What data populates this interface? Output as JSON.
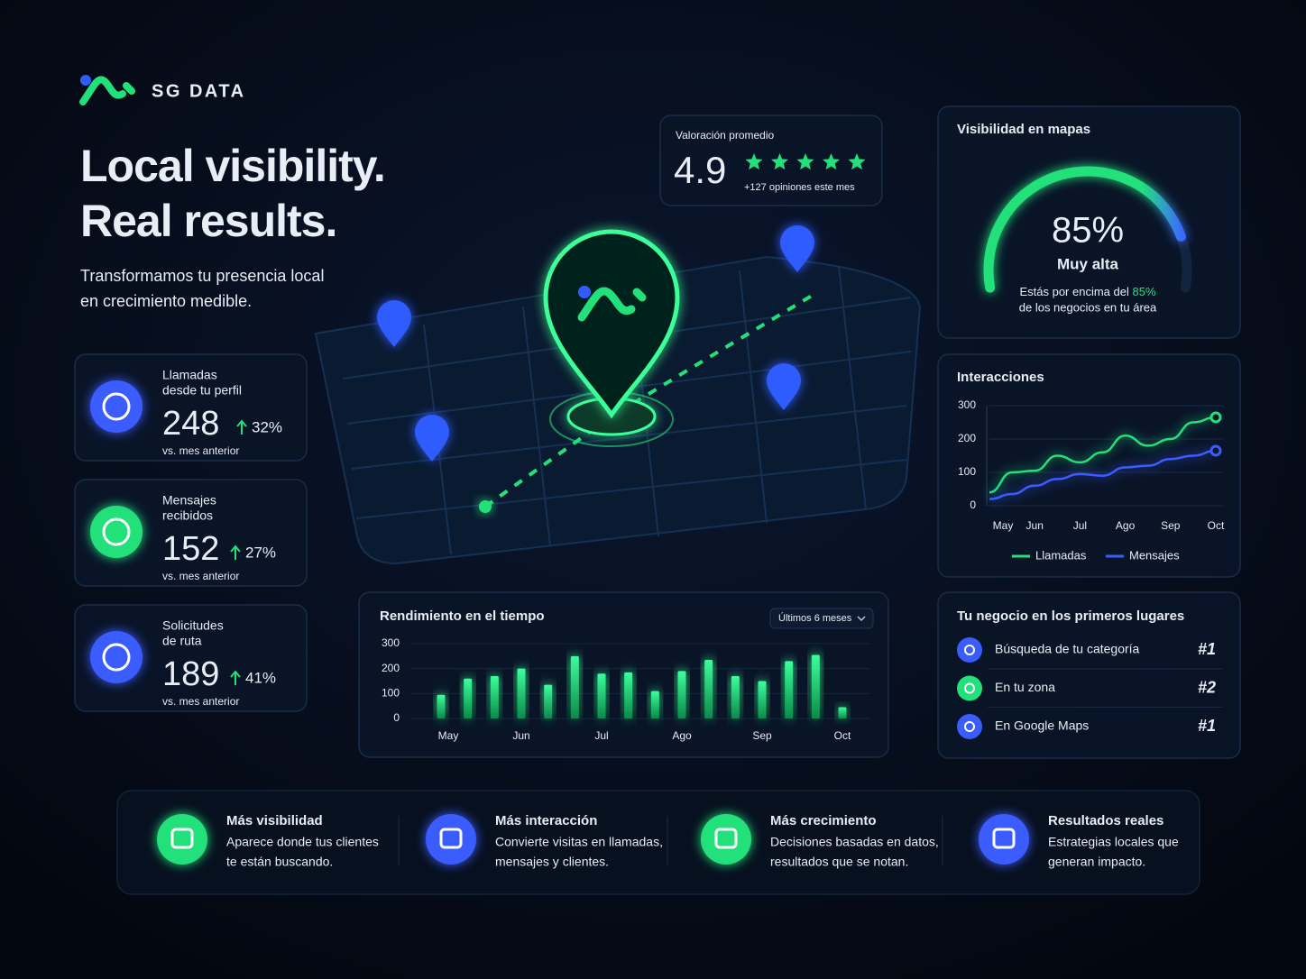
{
  "brand": "SG DATA",
  "hero": {
    "title_line1": "Local visibility.",
    "title_line2": "Real results.",
    "subtitle_line1": "Transformamos tu presencia local",
    "subtitle_line2": "en crecimiento medible."
  },
  "stats": [
    {
      "label_line1": "Llamadas",
      "label_line2": "desde tu perfil",
      "value": "248",
      "change": "32%",
      "note": "vs. mes anterior"
    },
    {
      "label_line1": "Mensajes",
      "label_line2": "recibidos",
      "value": "152",
      "change": "27%",
      "note": "vs. mes anterior"
    },
    {
      "label_line1": "Solicitudes",
      "label_line2": "de ruta",
      "value": "189",
      "change": "41%",
      "note": "vs. mes anterior"
    }
  ],
  "rating": {
    "label": "Valoración promedio",
    "value": "4.9",
    "note": "+127 opiniones este mes"
  },
  "gauge": {
    "title": "Visibilidad en mapas",
    "value": 85,
    "value_label": "85%",
    "status": "Muy alta",
    "note_pre": "Estás por encima del ",
    "note_highlight": "85%",
    "note_line2": "de los negocios en tu área"
  },
  "chart_data": [
    {
      "type": "line",
      "title": "Interacciones",
      "categories": [
        "May",
        null,
        "Jun",
        null,
        "Jul",
        null,
        "Ago",
        null,
        "Sep",
        null,
        "Oct"
      ],
      "series": [
        {
          "name": "Llamadas",
          "color": "#22e07a",
          "values": [
            40,
            100,
            105,
            150,
            130,
            160,
            210,
            180,
            200,
            250,
            265
          ]
        },
        {
          "name": "Mensajes",
          "color": "#3b5cff",
          "values": [
            20,
            35,
            60,
            80,
            95,
            90,
            115,
            120,
            140,
            150,
            165
          ]
        }
      ],
      "ylim": [
        0,
        300
      ],
      "yticks": [
        0,
        100,
        200,
        300
      ],
      "grid": true,
      "legend": "bottom"
    },
    {
      "type": "bar",
      "title": "Rendimiento en el tiempo",
      "filter": "Últimos 6 meses",
      "categories": [
        "May",
        null,
        null,
        "Jun",
        null,
        null,
        "Jul",
        null,
        null,
        "Ago",
        null,
        null,
        "Sep",
        null,
        null,
        "Oct"
      ],
      "values": [
        95,
        160,
        170,
        200,
        135,
        250,
        180,
        185,
        110,
        190,
        235,
        170,
        150,
        230,
        255,
        45
      ],
      "color": "#22e07a",
      "ylim": [
        0,
        300
      ],
      "yticks": [
        0,
        100,
        200,
        300
      ],
      "grid": true
    }
  ],
  "ranking": {
    "title": "Tu negocio en los primeros lugares",
    "items": [
      {
        "label": "Búsqueda de tu categoría",
        "rank": "#1"
      },
      {
        "label": "En tu zona",
        "rank": "#2"
      },
      {
        "label": "En Google Maps",
        "rank": "#1"
      }
    ]
  },
  "features": [
    {
      "title": "Más visibilidad",
      "line1": "Aparece donde tus clientes",
      "line2": "te están buscando."
    },
    {
      "title": "Más interacción",
      "line1": "Convierte visitas en llamadas,",
      "line2": "mensajes y clientes."
    },
    {
      "title": "Más crecimiento",
      "line1": "Decisiones basadas en datos,",
      "line2": "resultados que se notan."
    },
    {
      "title": "Resultados reales",
      "line1": "Estrategias locales que",
      "line2": "generan impacto."
    }
  ]
}
